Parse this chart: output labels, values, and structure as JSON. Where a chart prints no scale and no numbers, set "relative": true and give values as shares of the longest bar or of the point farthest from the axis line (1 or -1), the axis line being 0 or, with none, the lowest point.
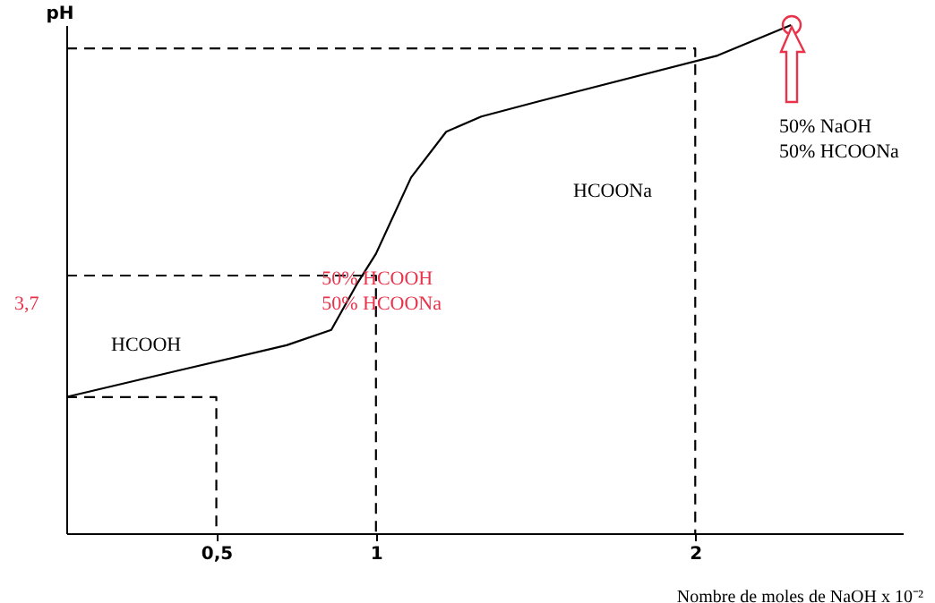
{
  "chart_data": {
    "type": "line",
    "relative": true,
    "xlabel": "Nombre de moles de NaOH x 10⁻²",
    "ylabel": "pH",
    "xlim": [
      0.03,
      2.65
    ],
    "xticks": [
      {
        "value": 0.5,
        "label": "0,5"
      },
      {
        "value": 1,
        "label": "1"
      },
      {
        "value": 2,
        "label": "2"
      }
    ],
    "grid": false,
    "series": [
      {
        "color": "#000000",
        "x": [
          0.03,
          0.38,
          0.72,
          0.86,
          0.94,
          1.0,
          1.11,
          1.22,
          1.33,
          1.51,
          2.07,
          2.3
        ],
        "values": [
          0.268,
          0.32,
          0.37,
          0.4,
          0.49,
          0.55,
          0.7,
          0.79,
          0.82,
          0.85,
          0.94,
          1.0
        ]
      },
      {
        "type": "line",
        "line_style": "dashed",
        "color": "#000000",
        "x": [
          0.03,
          1,
          1
        ],
        "values": [
          0.507,
          0.507,
          0
        ]
      },
      {
        "type": "line",
        "line_style": "dashed",
        "color": "#000000",
        "x": [
          0.03,
          0.5,
          0.5
        ],
        "values": [
          0.268,
          0.268,
          0
        ]
      },
      {
        "type": "line",
        "line_style": "dashed",
        "color": "#000000",
        "x": [
          0.03,
          2,
          2
        ],
        "values": [
          0.954,
          0.954,
          0
        ]
      }
    ],
    "annotations": [
      "HCOOH",
      "HCOONa",
      {
        "text": "50% HCOOH\n50% HCOONa",
        "x": 0.83,
        "y": 0.5
      },
      "50% NaOH\n50% HCOONa",
      "3,7"
    ]
  }
}
